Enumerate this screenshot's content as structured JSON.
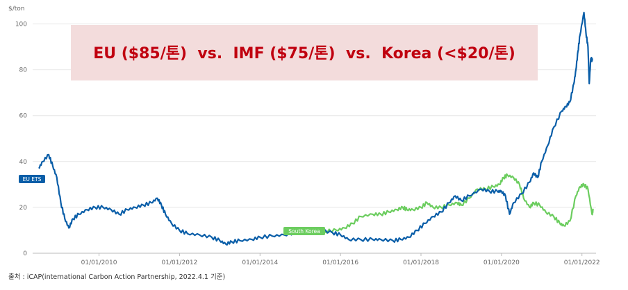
{
  "chart_data": {
    "type": "line",
    "y_unit": "$/ton",
    "ylim": [
      0,
      105
    ],
    "y_ticks": [
      "0",
      "20",
      "40",
      "60",
      "80",
      "100"
    ],
    "x_ticks": [
      "01/01/2010",
      "01/01/2012",
      "01/01/2014",
      "01/01/2016",
      "01/01/2018",
      "01/01/2020",
      "01/01/2022"
    ],
    "grid": "horizontal",
    "banner": "EU ($85/톤)  vs.  IMF ($75/톤)  vs.  Korea (<$20/톤)",
    "series": [
      {
        "name": "EU ETS",
        "color": "#0a5ea8",
        "points": [
          [
            2008.5,
            37
          ],
          [
            2008.6,
            40
          ],
          [
            2008.75,
            43
          ],
          [
            2008.85,
            38
          ],
          [
            2008.95,
            33
          ],
          [
            2009.05,
            22
          ],
          [
            2009.15,
            15
          ],
          [
            2009.25,
            11
          ],
          [
            2009.35,
            15
          ],
          [
            2009.5,
            17
          ],
          [
            2009.7,
            19
          ],
          [
            2009.9,
            20
          ],
          [
            2010.1,
            20
          ],
          [
            2010.3,
            19
          ],
          [
            2010.5,
            17
          ],
          [
            2010.7,
            19
          ],
          [
            2010.9,
            20
          ],
          [
            2011.1,
            21
          ],
          [
            2011.3,
            22
          ],
          [
            2011.45,
            24
          ],
          [
            2011.55,
            21
          ],
          [
            2011.65,
            17
          ],
          [
            2011.8,
            13
          ],
          [
            2012.0,
            10
          ],
          [
            2012.2,
            8.5
          ],
          [
            2012.5,
            8
          ],
          [
            2012.8,
            7
          ],
          [
            2013.0,
            5.5
          ],
          [
            2013.15,
            4
          ],
          [
            2013.3,
            5
          ],
          [
            2013.5,
            5.5
          ],
          [
            2013.8,
            6
          ],
          [
            2014.0,
            7
          ],
          [
            2014.3,
            7.5
          ],
          [
            2014.6,
            8
          ],
          [
            2014.9,
            9
          ],
          [
            2015.2,
            9
          ],
          [
            2015.5,
            10
          ],
          [
            2015.8,
            9
          ],
          [
            2016.0,
            8
          ],
          [
            2016.2,
            6
          ],
          [
            2016.5,
            6
          ],
          [
            2016.8,
            6
          ],
          [
            2017.0,
            6
          ],
          [
            2017.3,
            5.5
          ],
          [
            2017.5,
            6
          ],
          [
            2017.7,
            7
          ],
          [
            2017.9,
            10
          ],
          [
            2018.1,
            13
          ],
          [
            2018.3,
            16
          ],
          [
            2018.5,
            18
          ],
          [
            2018.7,
            22
          ],
          [
            2018.85,
            25
          ],
          [
            2019.0,
            23
          ],
          [
            2019.2,
            25
          ],
          [
            2019.5,
            28
          ],
          [
            2019.7,
            27
          ],
          [
            2019.9,
            27
          ],
          [
            2020.0,
            27
          ],
          [
            2020.1,
            25
          ],
          [
            2020.2,
            17
          ],
          [
            2020.3,
            22
          ],
          [
            2020.5,
            26
          ],
          [
            2020.7,
            31
          ],
          [
            2020.8,
            35
          ],
          [
            2020.9,
            33
          ],
          [
            2021.0,
            40
          ],
          [
            2021.15,
            47
          ],
          [
            2021.3,
            55
          ],
          [
            2021.5,
            62
          ],
          [
            2021.6,
            64
          ],
          [
            2021.7,
            66
          ],
          [
            2021.8,
            74
          ],
          [
            2021.85,
            80
          ],
          [
            2021.9,
            88
          ],
          [
            2021.95,
            95
          ],
          [
            2022.05,
            105
          ],
          [
            2022.1,
            96
          ],
          [
            2022.15,
            90
          ],
          [
            2022.18,
            74
          ],
          [
            2022.22,
            85
          ],
          [
            2022.26,
            84
          ]
        ]
      },
      {
        "name": "South Korea",
        "color": "#6ccd5f",
        "points": [
          [
            2015.0,
            8.5
          ],
          [
            2015.3,
            9
          ],
          [
            2015.6,
            9.5
          ],
          [
            2015.9,
            10
          ],
          [
            2016.1,
            11
          ],
          [
            2016.3,
            13
          ],
          [
            2016.5,
            16
          ],
          [
            2016.8,
            17
          ],
          [
            2017.0,
            17
          ],
          [
            2017.2,
            18
          ],
          [
            2017.4,
            19
          ],
          [
            2017.55,
            20
          ],
          [
            2017.65,
            19
          ],
          [
            2017.8,
            19
          ],
          [
            2018.0,
            20
          ],
          [
            2018.15,
            22
          ],
          [
            2018.3,
            20
          ],
          [
            2018.5,
            20
          ],
          [
            2018.7,
            21
          ],
          [
            2018.9,
            22
          ],
          [
            2019.0,
            21
          ],
          [
            2019.2,
            24
          ],
          [
            2019.4,
            28
          ],
          [
            2019.6,
            28
          ],
          [
            2019.8,
            29
          ],
          [
            2019.95,
            30
          ],
          [
            2020.05,
            33
          ],
          [
            2020.15,
            34
          ],
          [
            2020.3,
            33
          ],
          [
            2020.45,
            30
          ],
          [
            2020.55,
            24
          ],
          [
            2020.7,
            20
          ],
          [
            2020.8,
            22
          ],
          [
            2020.95,
            21
          ],
          [
            2021.1,
            18
          ],
          [
            2021.3,
            16
          ],
          [
            2021.45,
            13
          ],
          [
            2021.55,
            12
          ],
          [
            2021.7,
            14
          ],
          [
            2021.85,
            25
          ],
          [
            2021.95,
            29
          ],
          [
            2022.05,
            30
          ],
          [
            2022.15,
            28
          ],
          [
            2022.25,
            17
          ],
          [
            2022.28,
            19
          ]
        ]
      }
    ]
  },
  "source": "출처 : iCAP(international Carbon Action Partnership, 2022.4.1 기준)"
}
